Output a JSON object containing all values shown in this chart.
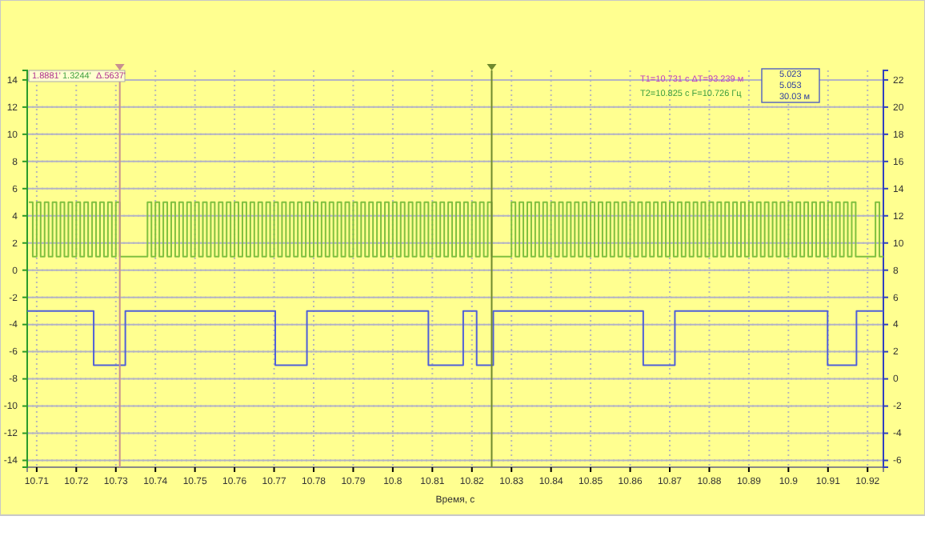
{
  "chart_data": {
    "type": "step",
    "xlabel": "Время, с",
    "xlim": [
      10.7076,
      10.924
    ],
    "xticks": [
      10.71,
      10.72,
      10.73,
      10.74,
      10.75,
      10.76,
      10.77,
      10.78,
      10.79,
      10.8,
      10.81,
      10.82,
      10.83,
      10.84,
      10.85,
      10.86,
      10.87,
      10.88,
      10.89,
      10.9,
      10.91,
      10.92
    ],
    "ylim": [
      -14.5,
      14.7
    ],
    "yticks": [
      -14,
      -12,
      -10,
      -8,
      -6,
      -4,
      -2,
      0,
      2,
      4,
      6,
      8,
      10,
      12,
      14
    ],
    "y2lim": [
      -6.5,
      22.7
    ],
    "y2ticks": [
      -6,
      -4,
      -2,
      0,
      2,
      4,
      6,
      8,
      10,
      12,
      14,
      16,
      18,
      20,
      22
    ],
    "grid": true,
    "line_style": "solid",
    "marker": "none",
    "annotations": [
      "1.8881'",
      "1.3244'",
      "Δ.5637'",
      "T1=10.731 с ΔT=93.239 м",
      "T2=10.825 с F=10.726 Гц",
      "5.023",
      "5.053",
      "30.03 м"
    ],
    "ref_lines": [
      {
        "axis": "x",
        "value": 10.731,
        "color": "#c89090"
      },
      {
        "axis": "x",
        "value": 10.825,
        "color": "#6f8a2e"
      }
    ],
    "series": [
      {
        "color": "#80c040",
        "x": [
          10.708,
          10.709,
          10.71,
          10.711,
          10.712,
          10.713,
          10.714,
          10.715,
          10.716,
          10.717,
          10.718,
          10.719,
          10.72,
          10.721,
          10.722,
          10.723,
          10.724,
          10.725,
          10.726,
          10.727,
          10.728,
          10.729,
          10.73,
          10.731,
          10.738,
          10.739,
          10.74,
          10.741,
          10.742,
          10.743,
          10.744,
          10.745,
          10.746,
          10.747,
          10.748,
          10.749,
          10.75,
          10.751,
          10.752,
          10.753,
          10.754,
          10.755,
          10.756,
          10.757,
          10.758,
          10.759,
          10.76,
          10.761,
          10.762,
          10.763,
          10.764,
          10.765,
          10.766,
          10.767,
          10.768,
          10.769,
          10.77,
          10.771,
          10.772,
          10.773,
          10.774,
          10.775,
          10.776,
          10.777,
          10.778,
          10.779,
          10.78,
          10.781,
          10.782,
          10.783,
          10.784,
          10.785,
          10.786,
          10.787,
          10.788,
          10.789,
          10.79,
          10.791,
          10.792,
          10.793,
          10.794,
          10.795,
          10.796,
          10.797,
          10.798,
          10.799,
          10.8,
          10.801,
          10.802,
          10.803,
          10.804,
          10.805,
          10.806,
          10.807,
          10.808,
          10.809,
          10.81,
          10.811,
          10.812,
          10.813,
          10.814,
          10.815,
          10.816,
          10.817,
          10.818,
          10.819,
          10.82,
          10.821,
          10.822,
          10.823,
          10.824,
          10.825,
          10.83,
          10.831,
          10.832,
          10.833,
          10.834,
          10.835,
          10.836,
          10.837,
          10.838,
          10.839,
          10.84,
          10.841,
          10.842,
          10.843,
          10.844,
          10.845,
          10.846,
          10.847,
          10.848,
          10.849,
          10.85,
          10.851,
          10.852,
          10.853,
          10.854,
          10.855,
          10.856,
          10.857,
          10.858,
          10.859,
          10.86,
          10.861,
          10.862,
          10.863,
          10.864,
          10.865,
          10.866,
          10.867,
          10.868,
          10.869,
          10.87,
          10.871,
          10.872,
          10.873,
          10.874,
          10.875,
          10.876,
          10.877,
          10.878,
          10.879,
          10.88,
          10.881,
          10.882,
          10.883,
          10.884,
          10.885,
          10.886,
          10.887,
          10.888,
          10.889,
          10.89,
          10.891,
          10.892,
          10.893,
          10.894,
          10.895,
          10.896,
          10.897,
          10.898,
          10.899,
          10.9,
          10.901,
          10.902,
          10.903,
          10.904,
          10.905,
          10.906,
          10.907,
          10.908,
          10.909,
          10.91,
          10.911,
          10.912,
          10.913,
          10.914,
          10.915,
          10.916,
          10.917,
          10.922,
          10.923,
          10.924
        ],
        "values": [
          5,
          1,
          5,
          1,
          5,
          1,
          5,
          1,
          5,
          1,
          5,
          1,
          5,
          1,
          5,
          1,
          5,
          1,
          5,
          1,
          5,
          1,
          5,
          1,
          5,
          1,
          5,
          1,
          5,
          1,
          5,
          1,
          5,
          1,
          5,
          1,
          5,
          1,
          5,
          1,
          5,
          1,
          5,
          1,
          5,
          1,
          5,
          1,
          5,
          1,
          5,
          1,
          5,
          1,
          5,
          1,
          5,
          1,
          5,
          1,
          5,
          1,
          5,
          1,
          5,
          1,
          5,
          1,
          5,
          1,
          5,
          1,
          5,
          1,
          5,
          1,
          5,
          1,
          5,
          1,
          5,
          1,
          5,
          1,
          5,
          1,
          5,
          1,
          5,
          1,
          5,
          1,
          5,
          1,
          5,
          1,
          5,
          1,
          5,
          1,
          5,
          1,
          5,
          1,
          5,
          1,
          5,
          1,
          5,
          1,
          5,
          1,
          5,
          1,
          5,
          1,
          5,
          1,
          5,
          1,
          5,
          1,
          5,
          1,
          5,
          1,
          5,
          1,
          5,
          1,
          5,
          1,
          5,
          1,
          5,
          1,
          5,
          1,
          5,
          1,
          5,
          1,
          5,
          1,
          5,
          1,
          5,
          1,
          5,
          1,
          5,
          1,
          5,
          1,
          5,
          1,
          5,
          1,
          5,
          1,
          5,
          1,
          5,
          1,
          5,
          1,
          5,
          1,
          5,
          1,
          5,
          1,
          5,
          1,
          5,
          1,
          5,
          1,
          5,
          1,
          5,
          1,
          5,
          1,
          5,
          1,
          5,
          1,
          5,
          1,
          5,
          1,
          5,
          1,
          5,
          1,
          5,
          1,
          5,
          1,
          5,
          1,
          1
        ]
      },
      {
        "color": "#5060d8",
        "axis": "y2",
        "x": [
          10.7076,
          10.7244,
          10.7324,
          10.7703,
          10.7783,
          10.809,
          10.8178,
          10.8212,
          10.8254,
          10.8633,
          10.8713,
          10.9099,
          10.9172,
          10.924
        ],
        "values": [
          5,
          1,
          5,
          1,
          5,
          1,
          5,
          1,
          5,
          1,
          5,
          1,
          5,
          5
        ]
      }
    ]
  }
}
